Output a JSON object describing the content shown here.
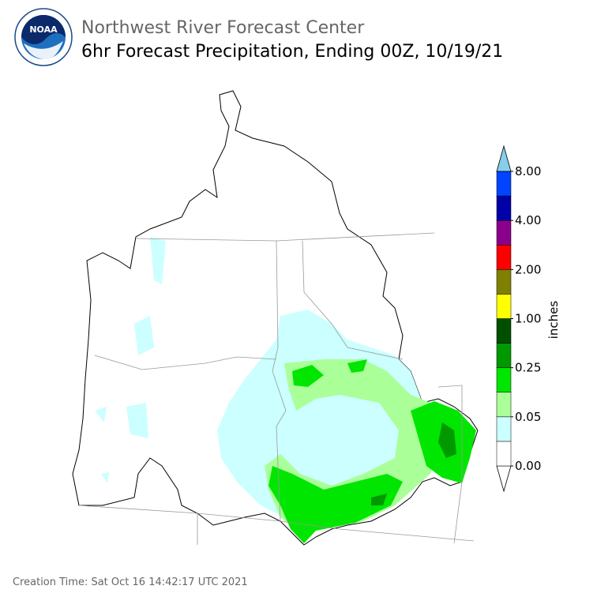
{
  "header": {
    "logo_text": "NOAA",
    "org": "Northwest River Forecast Center",
    "title": "6hr Forecast Precipitation, Ending 00Z, 10/19/21"
  },
  "colorbar": {
    "label": "inches",
    "colors": [
      "#ffffff",
      "#ccffff",
      "#aaff99",
      "#00e600",
      "#009900",
      "#005000",
      "#ffff00",
      "#808000",
      "#ff0000",
      "#8b008b",
      "#0000a8",
      "#0044ff",
      "#87ceeb"
    ],
    "ticks": [
      {
        "value": 0,
        "label": "0.00"
      },
      {
        "value": 0.05,
        "label": "0.05"
      },
      {
        "value": 0.25,
        "label": "0.25"
      },
      {
        "value": 1,
        "label": "1.00"
      },
      {
        "value": 2,
        "label": "2.00"
      },
      {
        "value": 4,
        "label": "4.00"
      },
      {
        "value": 8,
        "label": "8.00"
      }
    ]
  },
  "footer": "Creation Time: Sat Oct 16 14:42:17 UTC 2021"
}
